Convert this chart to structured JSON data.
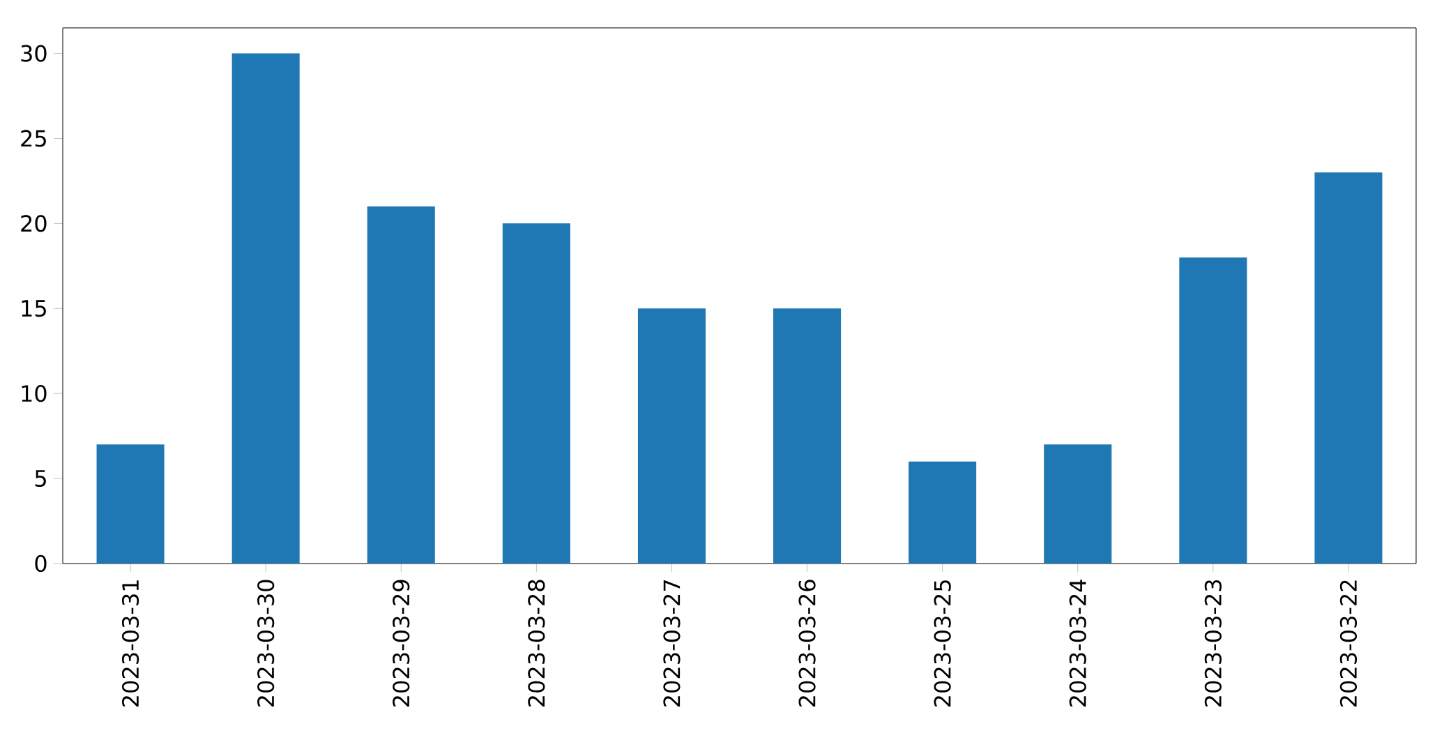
{
  "chart_data": {
    "type": "bar",
    "categories": [
      "2023-03-31",
      "2023-03-30",
      "2023-03-29",
      "2023-03-28",
      "2023-03-27",
      "2023-03-26",
      "2023-03-25",
      "2023-03-24",
      "2023-03-23",
      "2023-03-22"
    ],
    "values": [
      7,
      30,
      21,
      20,
      15,
      15,
      6,
      7,
      18,
      23
    ],
    "color": "#1f77b4",
    "ylim": [
      0,
      31.5
    ],
    "yticks": [
      0,
      5,
      10,
      15,
      20,
      25,
      30
    ],
    "grid": false
  }
}
